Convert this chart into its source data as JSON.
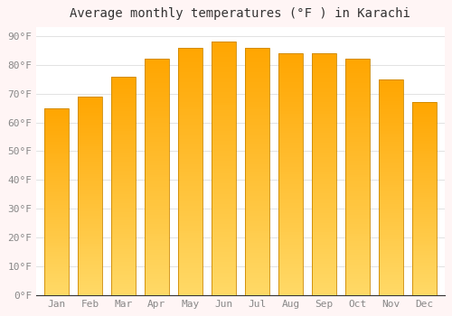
{
  "title": "Average monthly temperatures (°F ) in Karachi",
  "months": [
    "Jan",
    "Feb",
    "Mar",
    "Apr",
    "May",
    "Jun",
    "Jul",
    "Aug",
    "Sep",
    "Oct",
    "Nov",
    "Dec"
  ],
  "values": [
    65,
    69,
    76,
    82,
    86,
    88,
    86,
    84,
    84,
    82,
    75,
    67
  ],
  "bar_color_top": "#FFA500",
  "bar_color_bottom": "#FFD966",
  "bar_edge_color": "#CC8800",
  "background_color": "#FFF5F5",
  "plot_bg_color": "#FFFFFF",
  "grid_color": "#DDDDDD",
  "yticks": [
    0,
    10,
    20,
    30,
    40,
    50,
    60,
    70,
    80,
    90
  ],
  "ylim": [
    0,
    93
  ],
  "title_fontsize": 10,
  "tick_fontsize": 8,
  "tick_color": "#888888",
  "title_color": "#333333"
}
